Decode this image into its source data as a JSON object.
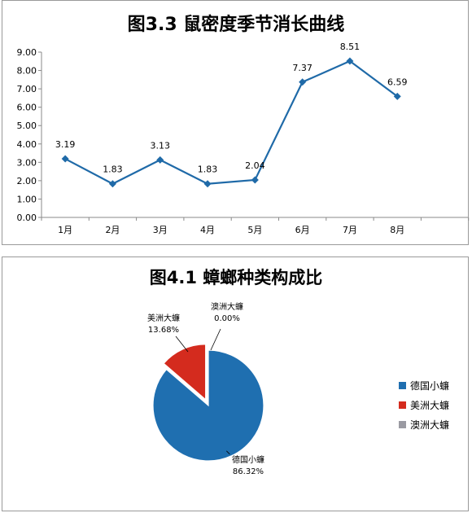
{
  "chart_data": [
    {
      "type": "line",
      "title": "图3.3 鼠密度季节消长曲线",
      "categories": [
        "1月",
        "2月",
        "3月",
        "4月",
        "5月",
        "6月",
        "7月",
        "8月"
      ],
      "values": [
        3.19,
        1.83,
        3.13,
        1.83,
        2.04,
        7.37,
        8.51,
        6.59
      ],
      "value_labels": [
        "3.19",
        "1.83",
        "3.13",
        "1.83",
        "2.04",
        "7.37",
        "8.51",
        "6.59"
      ],
      "yticks": [
        "0.00",
        "1.00",
        "2.00",
        "3.00",
        "4.00",
        "5.00",
        "6.00",
        "7.00",
        "8.00",
        "9.00"
      ],
      "ylim": [
        0,
        9
      ],
      "color": "#1f6aa8",
      "grid": false
    },
    {
      "type": "pie",
      "title": "图4.1 蟑螂种类构成比",
      "slices": [
        {
          "name": "德国小蠊",
          "value": 86.32,
          "label": "86.32%",
          "color": "#1f6fb0"
        },
        {
          "name": "美洲大蠊",
          "value": 13.68,
          "label": "13.68%",
          "color": "#d42b1e"
        },
        {
          "name": "澳洲大蠊",
          "value": 0.0,
          "label": "0.00%",
          "color": "#9a9aa2"
        }
      ],
      "legend_position": "right"
    }
  ]
}
